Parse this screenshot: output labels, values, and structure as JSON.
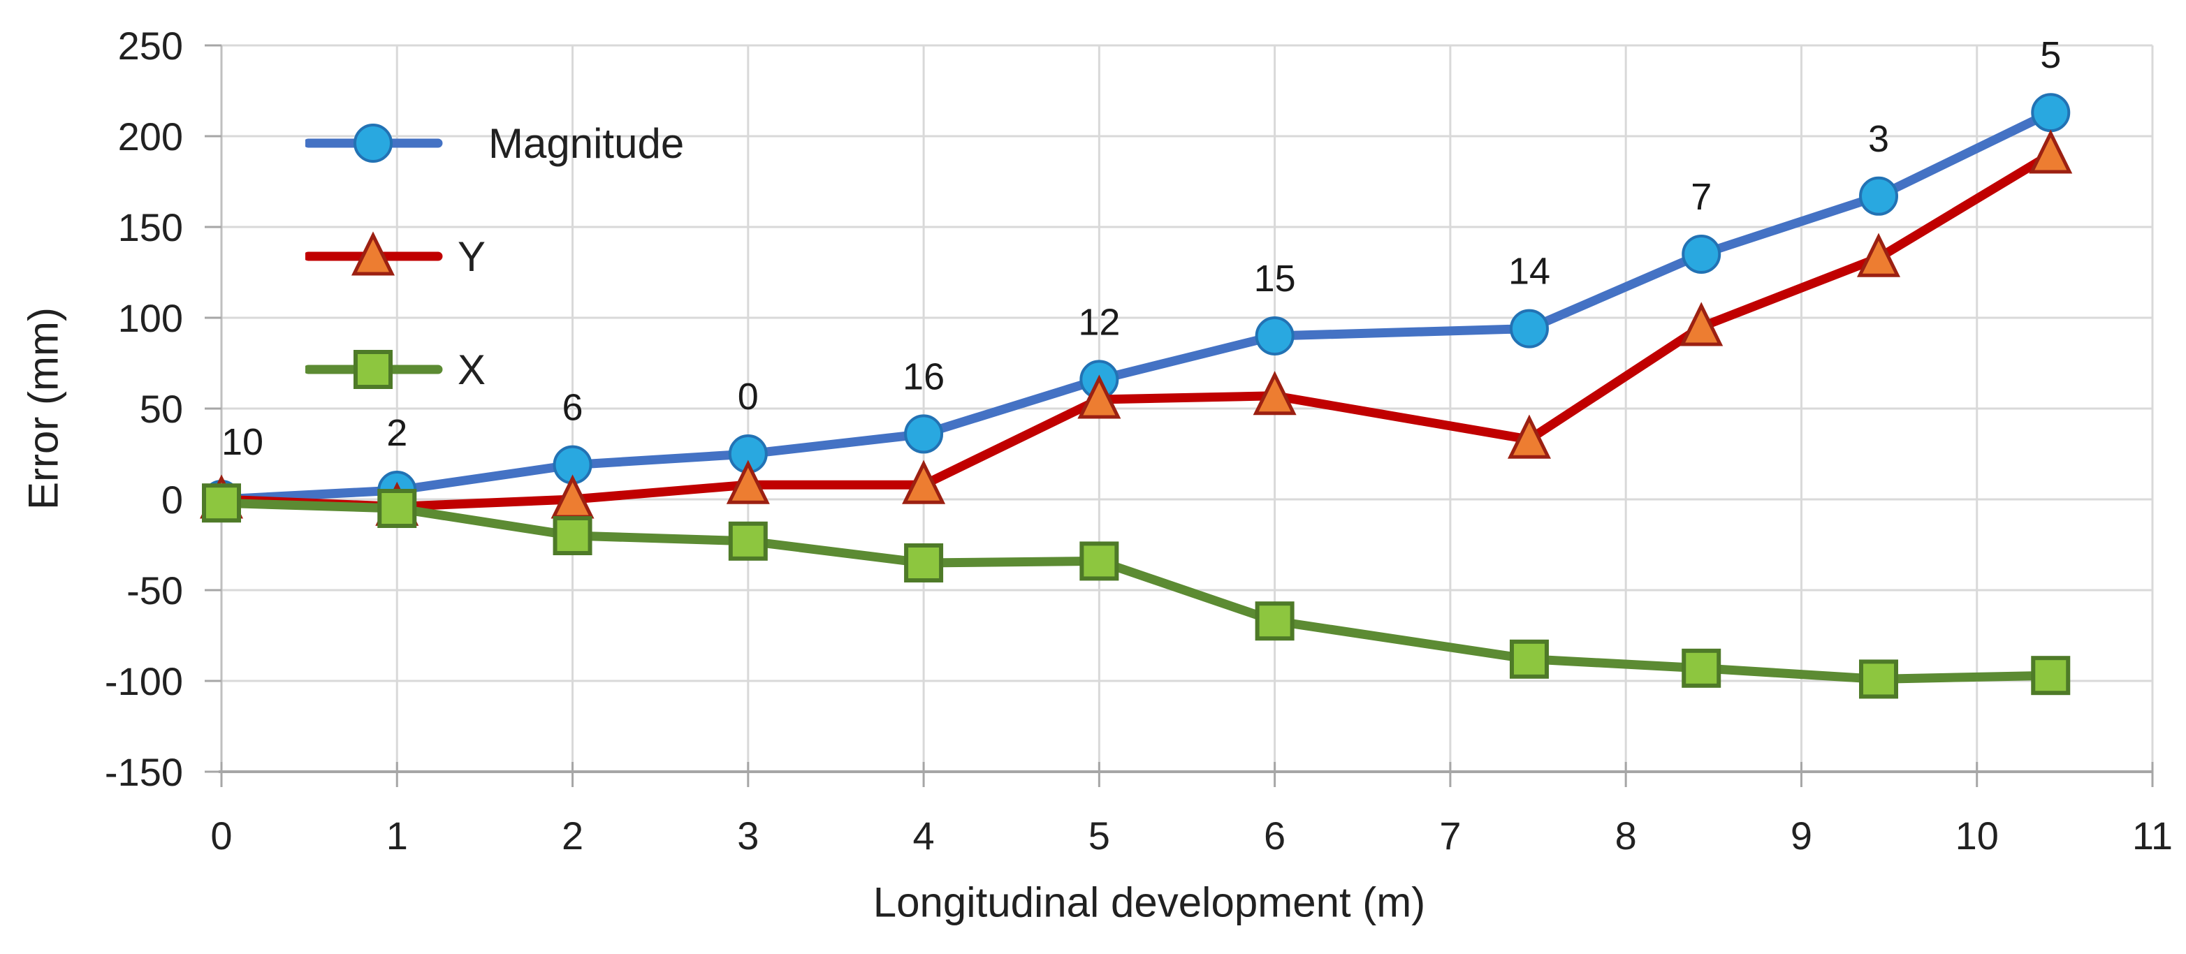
{
  "page": {
    "background": "#ffffff"
  },
  "chart_data": {
    "type": "line",
    "title": "",
    "xlabel": "Longitudinal development (m)",
    "ylabel": "Error (mm)",
    "xlim": [
      0,
      11
    ],
    "ylim": [
      -150,
      250
    ],
    "grid": "on",
    "legend_position": "top-left-inside",
    "x_ticks": [
      "0",
      "1",
      "2",
      "3",
      "4",
      "5",
      "6",
      "7",
      "8",
      "9",
      "10",
      "11"
    ],
    "y_ticks": [
      "250",
      "200",
      "150",
      "100",
      "50",
      "0",
      "-50",
      "-100",
      "-150"
    ],
    "x": [
      0,
      1,
      2,
      3,
      4,
      5,
      6,
      7.45,
      8.43,
      9.44,
      10.42
    ],
    "series": [
      {
        "name": "Magnitude",
        "marker": "circle",
        "line_color": "#4472C4",
        "marker_fill": "#29A8E0",
        "marker_stroke": "#2272B4",
        "values": [
          0,
          5,
          19,
          25,
          36,
          66,
          90,
          94,
          135,
          167,
          213
        ]
      },
      {
        "name": "Y",
        "marker": "triangle",
        "line_color": "#C00000",
        "marker_fill": "#ED7D31",
        "marker_stroke": "#9C2012",
        "values": [
          0,
          -4,
          0,
          8,
          8,
          55,
          57,
          33,
          95,
          133,
          190
        ]
      },
      {
        "name": "X",
        "marker": "square",
        "line_color": "#5C8B33",
        "marker_fill": "#8DC63F",
        "marker_stroke": "#4E7A28",
        "values": [
          -2,
          -5,
          -20,
          -23,
          -35,
          -34,
          -67,
          -88,
          -93,
          -99,
          -97
        ]
      }
    ],
    "point_labels": {
      "series": "Magnitude",
      "values": [
        "10",
        "2",
        "6",
        "0",
        "16",
        "12",
        "15",
        "14",
        "7",
        "3",
        "5"
      ]
    },
    "colors": {
      "gridline": "#D9D9D9",
      "axis_line": "#A6A6A6",
      "left_axis_line": "#BFBFBF",
      "text": "#212121"
    }
  }
}
